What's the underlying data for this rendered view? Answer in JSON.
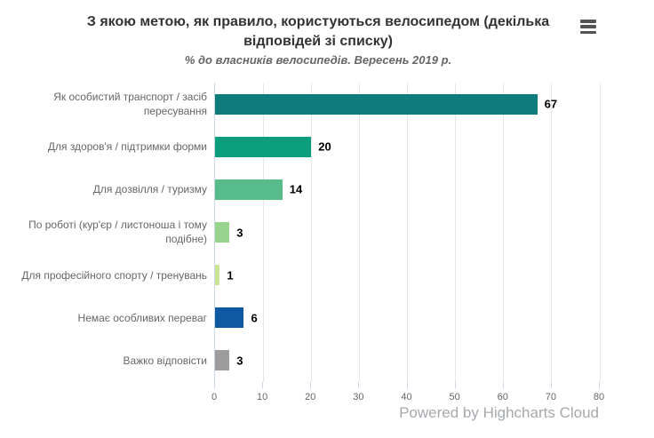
{
  "header": {
    "title": "З якою метою, як правило, користуються велосипедом (декілька відповідей зі списку)",
    "subtitle": "% до власників велосипедів. Вересень 2019 р."
  },
  "menu": {
    "icon": "hamburger-menu-icon"
  },
  "credits": {
    "label": "Powered by Highcharts Cloud"
  },
  "chart_data": {
    "type": "bar",
    "orientation": "horizontal",
    "title": "З якою метою, як правило, користуються велосипедом (декілька відповідей зі списку)",
    "subtitle": "% до власників велосипедів. Вересень 2019 р.",
    "categories": [
      "Як особистий транспорт / засіб пересування",
      "Для здоров'я / підтримки форми",
      "Для дозвілля / туризму",
      "По роботі (кур'єр / листоноша і тому подібне)",
      "Для професійного спорту / тренувань",
      "Немає особливих переваг",
      "Важко відповісти"
    ],
    "values": [
      67,
      20,
      14,
      3,
      1,
      6,
      3
    ],
    "bar_colors": [
      "#0e7c7a",
      "#0b9e7c",
      "#57bc8a",
      "#98d48e",
      "#c9e494",
      "#0e59a2",
      "#9c9c9c"
    ],
    "value_labels": [
      67,
      20,
      14,
      3,
      1,
      6,
      3
    ],
    "xlabel": "",
    "ylabel": "",
    "xlim": [
      0,
      80
    ],
    "x_ticks": [
      0,
      10,
      20,
      30,
      40,
      50,
      60,
      70,
      80
    ],
    "grid": true,
    "legend": "none"
  },
  "style": {
    "background": "#ffffff",
    "title_color": "#333333",
    "subtitle_color": "#666666",
    "category_label_color": "#666666",
    "axis_label_color": "#666666",
    "value_label_color": "#000000",
    "axis_line_color": "#ccd6eb",
    "grid_line_color": "#e6e6e6",
    "tick_color": "#ccd6eb",
    "credits_color": "#a5a9ad",
    "menu_icon_color": "#545454"
  }
}
